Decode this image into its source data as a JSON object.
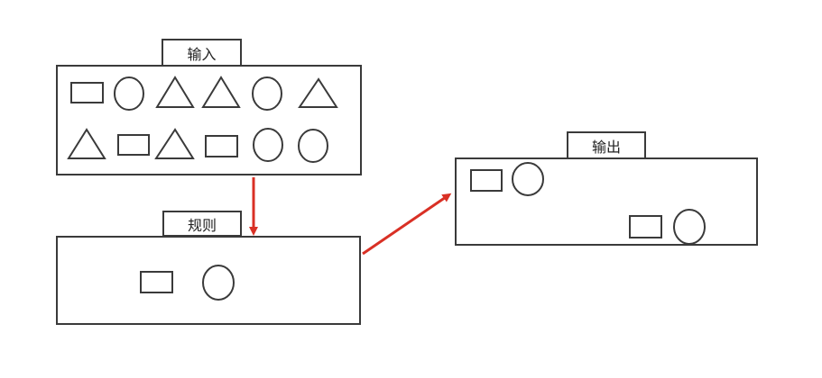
{
  "labels": {
    "input": "输入",
    "rule": "规则",
    "output": "输出"
  },
  "shapes": {
    "input_row1": [
      "rectangle",
      "circle",
      "triangle",
      "triangle",
      "circle",
      "triangle"
    ],
    "input_row2": [
      "triangle",
      "rectangle",
      "triangle",
      "rectangle",
      "circle",
      "circle"
    ],
    "rule": [
      "rectangle",
      "circle"
    ],
    "output_top": [
      "rectangle",
      "circle"
    ],
    "output_bottom": [
      "rectangle",
      "circle"
    ]
  },
  "colors": {
    "stroke": "#3a3a3a",
    "arrow": "#d93025"
  },
  "arrows": [
    {
      "from": "input",
      "to": "rule"
    },
    {
      "from": "rule",
      "to": "output"
    }
  ]
}
